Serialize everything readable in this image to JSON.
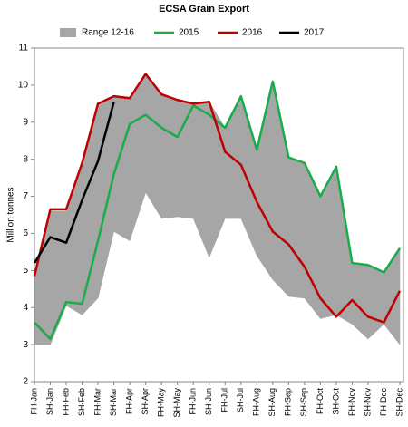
{
  "chart_data": {
    "type": "line",
    "title": "ECSA Grain Export",
    "y_label": "Million tonnes",
    "categories": [
      "FH-Jan",
      "SH-Jan",
      "FH-Feb",
      "SH-Feb",
      "FH-Mar",
      "SH-Mar",
      "FH-Apr",
      "SH-Apr",
      "FH-May",
      "SH-May",
      "FH-Jun",
      "SH-Jun",
      "FH-Jul",
      "SH-Jul",
      "FH-Aug",
      "SH-Aug",
      "FH-Sep",
      "SH-Sep",
      "FH-Oct",
      "SH-Oct",
      "FH-Nov",
      "SH-Nov",
      "FH-Dec",
      "SH-Dec"
    ],
    "range": {
      "name": "Range 12-16",
      "color": "#a6a6a6",
      "low": [
        3.0,
        3.0,
        4.05,
        3.8,
        4.25,
        6.05,
        5.8,
        7.1,
        6.4,
        6.45,
        6.4,
        5.35,
        6.4,
        6.4,
        5.4,
        4.75,
        4.3,
        4.25,
        3.7,
        3.8,
        3.55,
        3.15,
        3.55,
        3.0
      ],
      "high": [
        4.85,
        6.6,
        6.6,
        7.9,
        9.5,
        9.7,
        9.65,
        10.3,
        9.75,
        9.6,
        9.5,
        9.55,
        8.85,
        9.7,
        8.25,
        10.1,
        8.05,
        7.9,
        7.0,
        7.8,
        5.2,
        5.15,
        4.95,
        5.6
      ]
    },
    "series": [
      {
        "name": "2015",
        "color": "#1aab4b",
        "values": [
          3.6,
          3.15,
          4.15,
          4.1,
          5.8,
          7.6,
          8.95,
          9.2,
          8.85,
          8.6,
          9.45,
          9.2,
          8.85,
          9.7,
          8.25,
          10.1,
          8.05,
          7.9,
          7.0,
          7.8,
          5.2,
          5.15,
          4.95,
          5.6
        ]
      },
      {
        "name": "2016",
        "color": "#c00000",
        "values": [
          4.85,
          6.65,
          6.65,
          7.9,
          9.5,
          9.7,
          9.65,
          10.3,
          9.75,
          9.6,
          9.5,
          9.55,
          8.2,
          7.85,
          6.85,
          6.05,
          5.7,
          5.1,
          4.25,
          3.75,
          4.2,
          3.75,
          3.6,
          4.45
        ]
      },
      {
        "name": "2017",
        "color": "#000000",
        "values": [
          5.2,
          5.9,
          5.75,
          6.9,
          7.95,
          9.55,
          null,
          null,
          null,
          null,
          null,
          null,
          null,
          null,
          null,
          null,
          null,
          null,
          null,
          null,
          null,
          null,
          null,
          null
        ]
      }
    ],
    "ylim": [
      2,
      11
    ],
    "yticks": [
      2,
      3,
      4,
      5,
      6,
      7,
      8,
      9,
      10,
      11
    ]
  }
}
